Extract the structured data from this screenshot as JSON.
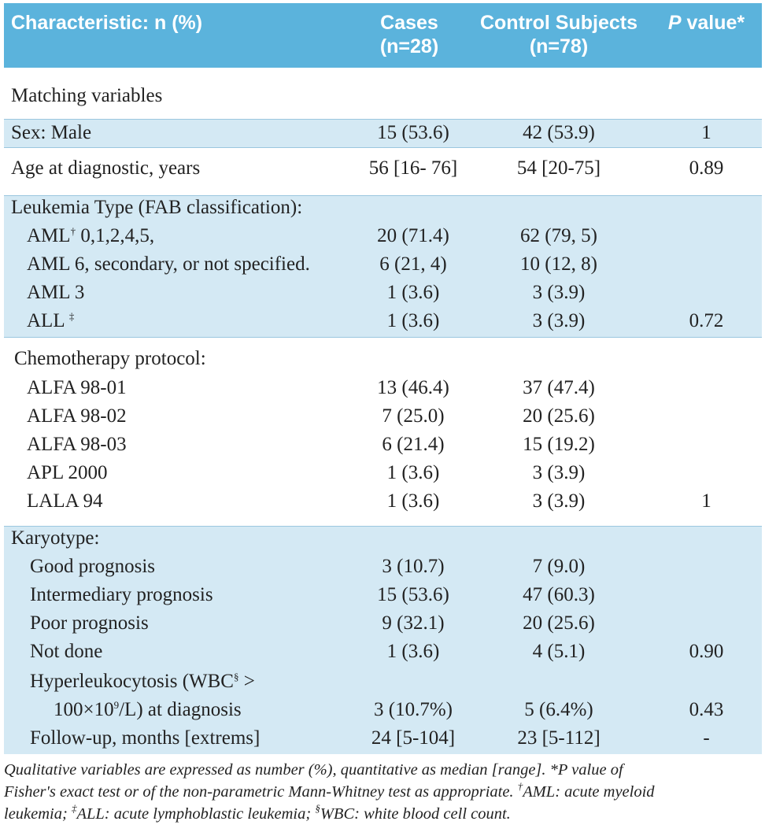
{
  "header": {
    "characteristic": "Characteristic: n (%)",
    "cases_line1": "Cases",
    "cases_line2": "(n=28)",
    "controls_line1": "Control Subjects",
    "controls_line2": "(n=78)",
    "pvalue_p": "P",
    "pvalue_rest": " value*"
  },
  "rows": [
    {
      "label": "Matching variables",
      "cases": "",
      "controls": "",
      "p": ""
    },
    {
      "label": "Sex: Male",
      "cases": "15 (53.6)",
      "controls": "42 (53.9)",
      "p": "1"
    },
    {
      "label": "Age at diagnostic, years",
      "cases": "56 [16- 76]",
      "controls": "54 [20-75]",
      "p": "0.89"
    },
    {
      "label": "Leukemia Type (FAB classification):",
      "cases": "",
      "controls": "",
      "p": ""
    },
    {
      "label": "AML",
      "sup": "†",
      "label_rest": " 0,1,2,4,5,",
      "cases": "20 (71.4)",
      "controls": "62 (79, 5)",
      "p": ""
    },
    {
      "label": "AML 6, secondary, or not specified.",
      "cases": "6 (21, 4)",
      "controls": "10 (12, 8)",
      "p": ""
    },
    {
      "label": "AML 3",
      "cases": "1 (3.6)",
      "controls": "3 (3.9)",
      "p": ""
    },
    {
      "label": "ALL ",
      "sup": "‡",
      "cases": "1 (3.6)",
      "controls": "3 (3.9)",
      "p": "0.72"
    },
    {
      "label": "Chemotherapy protocol:",
      "cases": "",
      "controls": "",
      "p": ""
    },
    {
      "label": "ALFA 98-01",
      "cases": "13 (46.4)",
      "controls": "37 (47.4)",
      "p": ""
    },
    {
      "label": "ALFA 98-02",
      "cases": "7 (25.0)",
      "controls": "20 (25.6)",
      "p": ""
    },
    {
      "label": "ALFA 98-03",
      "cases": "6 (21.4)",
      "controls": "15 (19.2)",
      "p": ""
    },
    {
      "label": "APL 2000",
      "cases": "1 (3.6)",
      "controls": "3 (3.9)",
      "p": ""
    },
    {
      "label": "LALA 94",
      "cases": "1 (3.6)",
      "controls": "3 (3.9)",
      "p": "1"
    },
    {
      "label": "Karyotype:",
      "cases": "",
      "controls": "",
      "p": ""
    },
    {
      "label": "Good prognosis",
      "cases": "3 (10.7)",
      "controls": "7 (9.0)",
      "p": ""
    },
    {
      "label": "Intermediary prognosis",
      "cases": "15 (53.6)",
      "controls": "47 (60.3)",
      "p": ""
    },
    {
      "label": "Poor prognosis",
      "cases": "9 (32.1)",
      "controls": "20 (25.6)",
      "p": ""
    },
    {
      "label": "Not done",
      "cases": "1 (3.6)",
      "controls": "4 (5.1)",
      "p": "0.90"
    },
    {
      "label": "Hyperleukocytosis (WBC",
      "sup": "§",
      "label_rest": " >",
      "cases": "",
      "controls": "",
      "p": ""
    },
    {
      "label": "100×10",
      "sup": "9",
      "label_rest": "/L) at diagnosis",
      "cases": "3 (10.7%)",
      "controls": "5 (6.4%)",
      "p": "0.43"
    },
    {
      "label": "Follow-up, months [extrems]",
      "cases": "24 [5-104]",
      "controls": "23 [5-112]",
      "p": "-"
    }
  ],
  "footnote": {
    "line1": "Qualitative variables are expressed as number (%), quantitative as median [range]. *P value of",
    "line2": "Fisher's exact test or of the non-parametric Mann-Whitney test as appropriate. ",
    "line2_sup": "†",
    "line2_rest": "AML: acute myeloid",
    "line3": "leukemia; ",
    "line3_sup1": "‡",
    "line3_mid": "ALL: acute lymphoblastic leukemia; ",
    "line3_sup2": "§",
    "line3_rest": "WBC: white blood cell count."
  }
}
